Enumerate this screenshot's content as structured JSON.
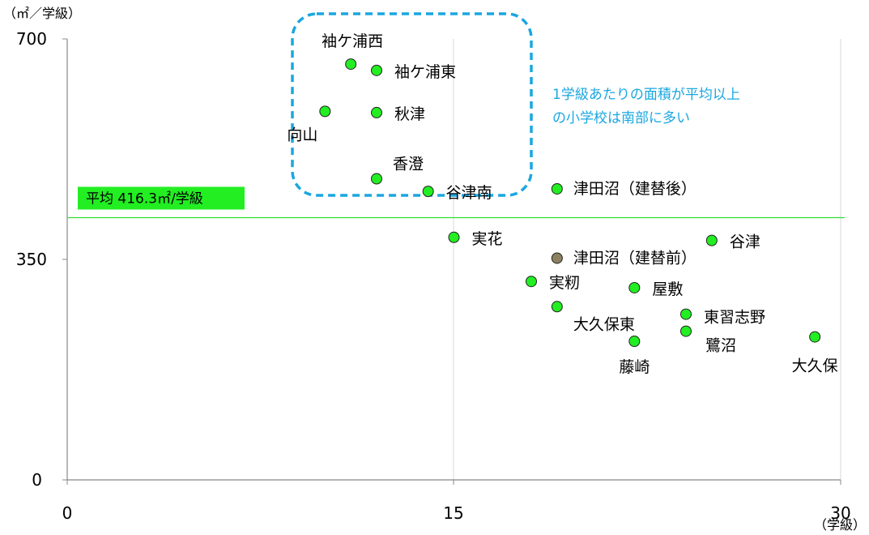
{
  "chart_data": {
    "type": "scatter",
    "y_unit_label": "（㎡／学級）",
    "x_unit_label": "（学級）",
    "xlim": [
      0,
      30
    ],
    "ylim": [
      0,
      700
    ],
    "x_ticks": [
      0,
      15,
      30
    ],
    "y_ticks": [
      0,
      350,
      700
    ],
    "grid": "vertical",
    "average": {
      "value": 416.3,
      "label": "平均 416.3㎡/学級",
      "color": "#33dd33"
    },
    "callout": {
      "lines": [
        "1学級あたりの面積が平均以上",
        "の小学校は南部に多い"
      ],
      "color": "#1aa7e0"
    },
    "points": [
      {
        "name": "袖ケ浦西",
        "x": 11,
        "y": 660,
        "color": "#22ee22"
      },
      {
        "name": "袖ケ浦東",
        "x": 12,
        "y": 650,
        "color": "#22ee22"
      },
      {
        "name": "向山",
        "x": 10,
        "y": 585,
        "color": "#22ee22"
      },
      {
        "name": "秋津",
        "x": 12,
        "y": 583,
        "color": "#22ee22"
      },
      {
        "name": "香澄",
        "x": 12,
        "y": 478,
        "color": "#22ee22"
      },
      {
        "name": "谷津南",
        "x": 14,
        "y": 458,
        "color": "#22ee22"
      },
      {
        "name": "津田沼（建替後）",
        "x": 19,
        "y": 462,
        "color": "#22ee22"
      },
      {
        "name": "実花",
        "x": 15,
        "y": 385,
        "color": "#22ee22"
      },
      {
        "name": "谷津",
        "x": 25,
        "y": 380,
        "color": "#22ee22"
      },
      {
        "name": "津田沼（建替前）",
        "x": 19,
        "y": 352,
        "color": "#8b8060"
      },
      {
        "name": "実籾",
        "x": 18,
        "y": 315,
        "color": "#22ee22"
      },
      {
        "name": "屋敷",
        "x": 22,
        "y": 305,
        "color": "#22ee22"
      },
      {
        "name": "大久保東",
        "x": 19,
        "y": 275,
        "color": "#22ee22"
      },
      {
        "name": "東習志野",
        "x": 24,
        "y": 263,
        "color": "#22ee22"
      },
      {
        "name": "鷺沼",
        "x": 24,
        "y": 236,
        "color": "#22ee22"
      },
      {
        "name": "藤崎",
        "x": 22,
        "y": 220,
        "color": "#22ee22"
      },
      {
        "name": "大久保",
        "x": 29,
        "y": 227,
        "color": "#22ee22"
      }
    ]
  }
}
